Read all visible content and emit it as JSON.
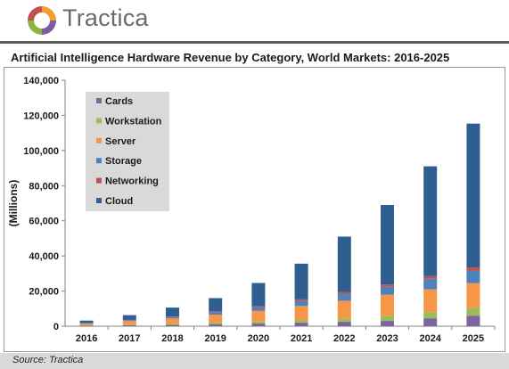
{
  "brand": {
    "name": "Tractica"
  },
  "source": "Source: Tractica",
  "chart_data": {
    "type": "bar",
    "stacked": true,
    "title": "Artificial Intelligence Hardware Revenue by Category, World Markets: 2016-2025",
    "ylabel": "(Millions)",
    "xlabel": "",
    "ylim": [
      0,
      140000
    ],
    "yticks": [
      "0",
      "20,000",
      "40,000",
      "60,000",
      "80,000",
      "100,000",
      "120,000",
      "140,000"
    ],
    "legend_position": "top-left",
    "grid": false,
    "categories": [
      "2016",
      "2017",
      "2018",
      "2019",
      "2020",
      "2021",
      "2022",
      "2023",
      "2024",
      "2025"
    ],
    "series": [
      {
        "name": "Cards",
        "color": "#7e649e",
        "values": [
          300,
          500,
          800,
          1200,
          1500,
          2000,
          2500,
          3000,
          4500,
          6000
        ]
      },
      {
        "name": "Workstation",
        "color": "#9bbb59",
        "values": [
          200,
          400,
          600,
          900,
          1200,
          1500,
          2000,
          3000,
          3500,
          4500
        ]
      },
      {
        "name": "Server",
        "color": "#f79646",
        "values": [
          1000,
          2000,
          3000,
          4500,
          6000,
          8000,
          10000,
          12000,
          13000,
          14000
        ]
      },
      {
        "name": "Storage",
        "color": "#4f81bd",
        "values": [
          200,
          500,
          800,
          1500,
          2000,
          3000,
          4000,
          4500,
          6000,
          7000
        ]
      },
      {
        "name": "Networking",
        "color": "#c0504d",
        "values": [
          100,
          200,
          300,
          400,
          600,
          800,
          1000,
          1200,
          1500,
          1800
        ]
      },
      {
        "name": "Cloud",
        "color": "#2f5f8f",
        "values": [
          1400,
          2700,
          5100,
          7500,
          13300,
          20300,
          31500,
          45300,
          62500,
          82000
        ]
      }
    ]
  }
}
